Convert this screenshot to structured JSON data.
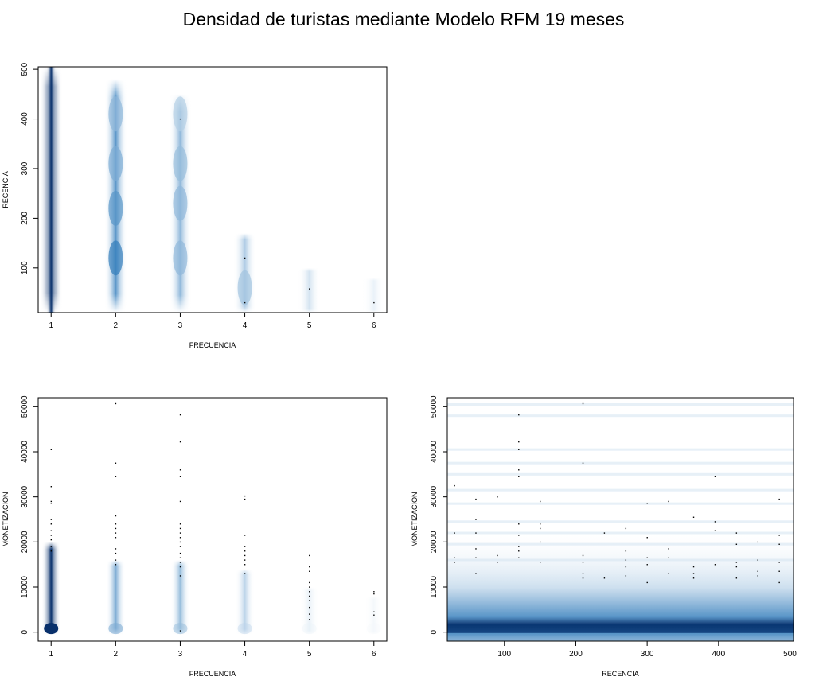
{
  "page": {
    "title": "Densidad de turistas mediante Modelo RFM 19 meses"
  },
  "colors": {
    "density_low": "#ffffff",
    "density_high": "#08306b",
    "mid_blue": "#2171b5",
    "points": "#000000"
  },
  "chart_data": [
    {
      "type": "heatmap",
      "title": "",
      "xlabel": "FRECUENCIA",
      "ylabel": "RECENCIA",
      "xlim": [
        0.8,
        6.2
      ],
      "ylim": [
        10,
        505
      ],
      "xticks": [
        1,
        2,
        3,
        4,
        5,
        6
      ],
      "yticks": [
        100,
        200,
        300,
        400,
        500
      ],
      "density": [
        {
          "x": 1,
          "y_from": 10,
          "y_to": 505,
          "intensity": 1.0
        },
        {
          "x": 2,
          "y_from": 10,
          "y_to": 480,
          "intensity": 0.45
        },
        {
          "x": 3,
          "y_from": 10,
          "y_to": 450,
          "intensity": 0.3
        },
        {
          "x": 4,
          "y_from": 10,
          "y_to": 170,
          "intensity": 0.22
        },
        {
          "x": 5,
          "y_from": 10,
          "y_to": 100,
          "intensity": 0.12
        },
        {
          "x": 6,
          "y_from": 10,
          "y_to": 80,
          "intensity": 0.06
        }
      ],
      "points": [
        {
          "x": 3,
          "y": 400
        },
        {
          "x": 4,
          "y": 120
        },
        {
          "x": 4,
          "y": 30
        },
        {
          "x": 5,
          "y": 58
        },
        {
          "x": 6,
          "y": 30
        }
      ]
    },
    {
      "type": "heatmap",
      "title": "",
      "xlabel": "FRECUENCIA",
      "ylabel": "MONETIZACION",
      "xlim": [
        0.8,
        6.2
      ],
      "ylim": [
        -2000,
        52000
      ],
      "xticks": [
        1,
        2,
        3,
        4,
        5,
        6
      ],
      "yticks": [
        0,
        10000,
        20000,
        30000,
        40000,
        50000
      ],
      "density": [
        {
          "x": 1,
          "y_from": -500,
          "y_to": 20000,
          "intensity": 1.0
        },
        {
          "x": 2,
          "y_from": -500,
          "y_to": 16000,
          "intensity": 0.35
        },
        {
          "x": 3,
          "y_from": -500,
          "y_to": 16000,
          "intensity": 0.28
        },
        {
          "x": 4,
          "y_from": -500,
          "y_to": 14000,
          "intensity": 0.18
        },
        {
          "x": 5,
          "y_from": -500,
          "y_to": 10000,
          "intensity": 0.06
        },
        {
          "x": 6,
          "y_from": -500,
          "y_to": 8000,
          "intensity": 0.03
        }
      ],
      "points": [
        {
          "x": 1,
          "y": 40500
        },
        {
          "x": 1,
          "y": 32300
        },
        {
          "x": 1,
          "y": 29000
        },
        {
          "x": 1,
          "y": 28500
        },
        {
          "x": 1,
          "y": 25000
        },
        {
          "x": 1,
          "y": 24000
        },
        {
          "x": 1,
          "y": 22500
        },
        {
          "x": 1,
          "y": 21500
        },
        {
          "x": 1,
          "y": 20500
        },
        {
          "x": 1,
          "y": 19000
        },
        {
          "x": 1,
          "y": 18000
        },
        {
          "x": 2,
          "y": 50700
        },
        {
          "x": 2,
          "y": 37500
        },
        {
          "x": 2,
          "y": 34500
        },
        {
          "x": 2,
          "y": 25800
        },
        {
          "x": 2,
          "y": 24000
        },
        {
          "x": 2,
          "y": 23000
        },
        {
          "x": 2,
          "y": 22000
        },
        {
          "x": 2,
          "y": 21000
        },
        {
          "x": 2,
          "y": 18500
        },
        {
          "x": 2,
          "y": 17500
        },
        {
          "x": 2,
          "y": 16000
        },
        {
          "x": 2,
          "y": 15000
        },
        {
          "x": 3,
          "y": 48200
        },
        {
          "x": 3,
          "y": 42200
        },
        {
          "x": 3,
          "y": 36000
        },
        {
          "x": 3,
          "y": 34500
        },
        {
          "x": 3,
          "y": 29000
        },
        {
          "x": 3,
          "y": 24000
        },
        {
          "x": 3,
          "y": 23000
        },
        {
          "x": 3,
          "y": 22000
        },
        {
          "x": 3,
          "y": 21000
        },
        {
          "x": 3,
          "y": 20000
        },
        {
          "x": 3,
          "y": 19000
        },
        {
          "x": 3,
          "y": 17500
        },
        {
          "x": 3,
          "y": 16500
        },
        {
          "x": 3,
          "y": 15500
        },
        {
          "x": 3,
          "y": 14500
        },
        {
          "x": 3,
          "y": 12500
        },
        {
          "x": 3,
          "y": 300
        },
        {
          "x": 4,
          "y": 30200
        },
        {
          "x": 4,
          "y": 29500
        },
        {
          "x": 4,
          "y": 21500
        },
        {
          "x": 4,
          "y": 19000
        },
        {
          "x": 4,
          "y": 18000
        },
        {
          "x": 4,
          "y": 17000
        },
        {
          "x": 4,
          "y": 16000
        },
        {
          "x": 4,
          "y": 15000
        },
        {
          "x": 4,
          "y": 13000
        },
        {
          "x": 5,
          "y": 17000
        },
        {
          "x": 5,
          "y": 14500
        },
        {
          "x": 5,
          "y": 13500
        },
        {
          "x": 5,
          "y": 11000
        },
        {
          "x": 5,
          "y": 10000
        },
        {
          "x": 5,
          "y": 9000
        },
        {
          "x": 5,
          "y": 8000
        },
        {
          "x": 5,
          "y": 7000
        },
        {
          "x": 5,
          "y": 5500
        },
        {
          "x": 5,
          "y": 4000
        },
        {
          "x": 5,
          "y": 2800
        },
        {
          "x": 6,
          "y": 9000
        },
        {
          "x": 6,
          "y": 8500
        },
        {
          "x": 6,
          "y": 4500
        },
        {
          "x": 6,
          "y": 3800
        }
      ]
    },
    {
      "type": "heatmap",
      "title": "",
      "xlabel": "RECENCIA",
      "ylabel": "MONETIZACION",
      "xlim": [
        20,
        505
      ],
      "ylim": [
        -2000,
        52000
      ],
      "xticks": [
        100,
        200,
        300,
        400,
        500
      ],
      "yticks": [
        0,
        10000,
        20000,
        30000,
        40000,
        50000
      ],
      "density": [
        {
          "y_center": 800,
          "y_spread": 900,
          "intensity": 1.0
        },
        {
          "y_center": 2500,
          "y_spread": 3500,
          "intensity": 0.35
        },
        {
          "y_center": 8000,
          "y_spread": 9000,
          "intensity": 0.12
        }
      ],
      "bands": [
        16000,
        19500,
        22000,
        24500,
        28500,
        31500,
        35000,
        37500,
        40500,
        48000,
        50500
      ],
      "points": [
        {
          "x": 30,
          "y": 32500
        },
        {
          "x": 30,
          "y": 22000
        },
        {
          "x": 30,
          "y": 16500
        },
        {
          "x": 30,
          "y": 15500
        },
        {
          "x": 60,
          "y": 29500
        },
        {
          "x": 60,
          "y": 25000
        },
        {
          "x": 60,
          "y": 22000
        },
        {
          "x": 60,
          "y": 18500
        },
        {
          "x": 60,
          "y": 16500
        },
        {
          "x": 60,
          "y": 13000
        },
        {
          "x": 90,
          "y": 30000
        },
        {
          "x": 90,
          "y": 17000
        },
        {
          "x": 90,
          "y": 15500
        },
        {
          "x": 120,
          "y": 48200
        },
        {
          "x": 120,
          "y": 42200
        },
        {
          "x": 120,
          "y": 40500
        },
        {
          "x": 120,
          "y": 36000
        },
        {
          "x": 120,
          "y": 34500
        },
        {
          "x": 120,
          "y": 24000
        },
        {
          "x": 120,
          "y": 21500
        },
        {
          "x": 120,
          "y": 19000
        },
        {
          "x": 120,
          "y": 18000
        },
        {
          "x": 120,
          "y": 16500
        },
        {
          "x": 150,
          "y": 29000
        },
        {
          "x": 150,
          "y": 24000
        },
        {
          "x": 150,
          "y": 23000
        },
        {
          "x": 150,
          "y": 20000
        },
        {
          "x": 150,
          "y": 15500
        },
        {
          "x": 210,
          "y": 50700
        },
        {
          "x": 210,
          "y": 37500
        },
        {
          "x": 210,
          "y": 17000
        },
        {
          "x": 210,
          "y": 15500
        },
        {
          "x": 210,
          "y": 13000
        },
        {
          "x": 210,
          "y": 12000
        },
        {
          "x": 240,
          "y": 22000
        },
        {
          "x": 240,
          "y": 12000
        },
        {
          "x": 270,
          "y": 23000
        },
        {
          "x": 270,
          "y": 18000
        },
        {
          "x": 270,
          "y": 16000
        },
        {
          "x": 270,
          "y": 14500
        },
        {
          "x": 270,
          "y": 12500
        },
        {
          "x": 300,
          "y": 28500
        },
        {
          "x": 300,
          "y": 21000
        },
        {
          "x": 300,
          "y": 16500
        },
        {
          "x": 300,
          "y": 15000
        },
        {
          "x": 300,
          "y": 11000
        },
        {
          "x": 330,
          "y": 29000
        },
        {
          "x": 330,
          "y": 18500
        },
        {
          "x": 330,
          "y": 16500
        },
        {
          "x": 330,
          "y": 13000
        },
        {
          "x": 365,
          "y": 25500
        },
        {
          "x": 365,
          "y": 14500
        },
        {
          "x": 365,
          "y": 13000
        },
        {
          "x": 365,
          "y": 12000
        },
        {
          "x": 395,
          "y": 34500
        },
        {
          "x": 395,
          "y": 24500
        },
        {
          "x": 395,
          "y": 22500
        },
        {
          "x": 395,
          "y": 15000
        },
        {
          "x": 425,
          "y": 22000
        },
        {
          "x": 425,
          "y": 19500
        },
        {
          "x": 425,
          "y": 15500
        },
        {
          "x": 425,
          "y": 14500
        },
        {
          "x": 425,
          "y": 12000
        },
        {
          "x": 455,
          "y": 20000
        },
        {
          "x": 455,
          "y": 16000
        },
        {
          "x": 455,
          "y": 13500
        },
        {
          "x": 455,
          "y": 12500
        },
        {
          "x": 485,
          "y": 29500
        },
        {
          "x": 485,
          "y": 21500
        },
        {
          "x": 485,
          "y": 19500
        },
        {
          "x": 485,
          "y": 15500
        },
        {
          "x": 485,
          "y": 13500
        },
        {
          "x": 485,
          "y": 11000
        }
      ]
    }
  ]
}
